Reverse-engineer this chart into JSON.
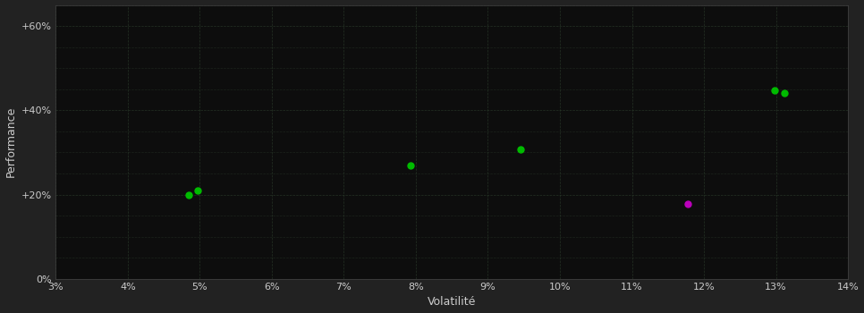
{
  "background_color": "#222222",
  "plot_bg_color": "#0d0d0d",
  "text_color": "#cccccc",
  "xlabel": "Volatilité",
  "ylabel": "Performance",
  "xlim": [
    0.03,
    0.14
  ],
  "ylim": [
    0.0,
    0.65
  ],
  "xticks": [
    0.03,
    0.04,
    0.05,
    0.06,
    0.07,
    0.08,
    0.09,
    0.1,
    0.11,
    0.12,
    0.13,
    0.14
  ],
  "yticks": [
    0.0,
    0.2,
    0.4,
    0.6
  ],
  "ytick_labels": [
    "0%",
    "+20%",
    "+40%",
    "+60%"
  ],
  "xtick_labels": [
    "3%",
    "4%",
    "5%",
    "6%",
    "7%",
    "8%",
    "9%",
    "10%",
    "11%",
    "12%",
    "13%",
    "14%"
  ],
  "minor_yticks": [
    0.0,
    0.05,
    0.1,
    0.15,
    0.2,
    0.25,
    0.3,
    0.35,
    0.4,
    0.45,
    0.5,
    0.55,
    0.6,
    0.65
  ],
  "green_points": [
    [
      0.0485,
      0.2
    ],
    [
      0.0497,
      0.21
    ],
    [
      0.0793,
      0.27
    ],
    [
      0.0945,
      0.308
    ],
    [
      0.1298,
      0.448
    ],
    [
      0.1312,
      0.44
    ]
  ],
  "magenta_points": [
    [
      0.1178,
      0.178
    ]
  ],
  "green_color": "#00bb00",
  "magenta_color": "#bb00bb",
  "point_size": 25,
  "point_marker": "o",
  "grid_color": "#2a3a2a",
  "grid_linestyle": "--",
  "grid_linewidth": 0.5
}
